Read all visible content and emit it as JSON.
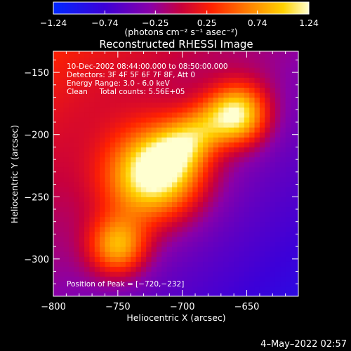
{
  "chart_data": {
    "type": "heatmap",
    "title": "Reconstructed RHESSI Image",
    "xlabel": "Heliocentric X (arcsec)",
    "ylabel": "Heliocentric Y (arcsec)",
    "xlim": [
      -800,
      -610
    ],
    "ylim": [
      -330,
      -133
    ],
    "x_ticks": [
      -800,
      -750,
      -700,
      -650
    ],
    "x_tick_labels": [
      "−800",
      "−750",
      "−700",
      "−650"
    ],
    "y_ticks": [
      -150,
      -200,
      -250,
      -300
    ],
    "y_tick_labels": [
      "−150",
      "−200",
      "−250",
      "−300"
    ],
    "colorbar": {
      "range": [
        -1.24,
        1.24
      ],
      "ticks": [
        -1.24,
        -0.74,
        -0.25,
        0.25,
        0.74,
        1.24
      ],
      "tick_labels": [
        "−1.24",
        "−0.74",
        "−0.25",
        "0.25",
        "0.74",
        "1.24"
      ],
      "unit_label": "(photons cm⁻² s⁻¹ asec⁻²)"
    },
    "info_lines": [
      "10-Dec-2002 08:44:00.000 to 08:50:00.000",
      "Detectors: 3F 4F 5F 6F 7F 8F, Att 0",
      "Energy Range: 3.0 - 6.0 keV",
      "Clean     Total counts: 5.56E+05"
    ],
    "peak_label": "Position of Peak = [−720,−232]",
    "peak": [
      -720,
      -232
    ],
    "sources": [
      {
        "x": -720,
        "y": -232,
        "amp": 1.24,
        "sx": 26,
        "sy": 28,
        "angle": -45
      },
      {
        "x": -655,
        "y": -185,
        "amp": 0.9,
        "sx": 16,
        "sy": 17,
        "angle": 0
      },
      {
        "x": -750,
        "y": -290,
        "amp": 0.82,
        "sx": 16,
        "sy": 17,
        "angle": 0
      },
      {
        "x": -690,
        "y": -200,
        "amp": 0.55,
        "sx": 30,
        "sy": 14,
        "angle": 40
      }
    ],
    "background_value": -0.3,
    "footer_date": "4–May–2022 02:57"
  }
}
